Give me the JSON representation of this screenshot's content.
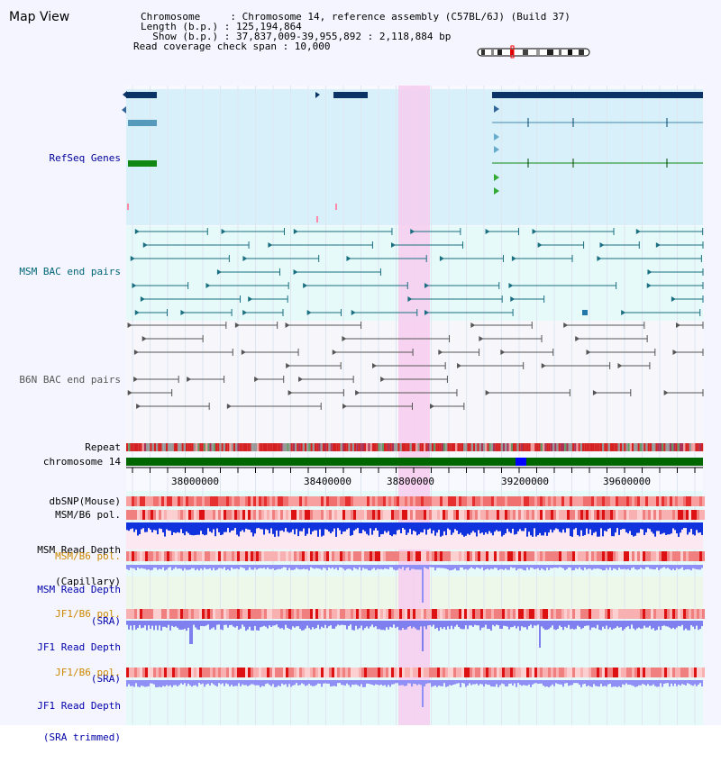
{
  "title": "Map View",
  "header": {
    "chromosome_line": "Chromosome     : Chromosome 14, reference assembly (C57BL/6J) (Build 37)",
    "length_line": "Length (b.p.) : 125,194,864",
    "show_line": "  Show (b.p.) : 37,837,009-39,955,892 : 2,118,884 bp",
    "read_coverage_line": "Read coverage check span : 10,000"
  },
  "tracks": {
    "refseq": "RefSeq Genes",
    "msm_bac": "MSM BAC end pairs",
    "b6n_bac": "B6N BAC end pairs",
    "repeat": "Repeat",
    "chromosome": "chromosome 14",
    "dbsnp": "dbSNP(Mouse)",
    "msm_b6_pol": "MSM/B6 pol.",
    "msm_depth_cap_1": "MSM Read Depth",
    "msm_depth_cap_2": "(Capillary)",
    "msm_b6_pol_2": "MSM/B6 pol.",
    "msm_depth_sra_1": "MSM Read Depth",
    "msm_depth_sra_2": "(SRA)",
    "jf1_b6_pol": "JF1/B6 pol.",
    "jf1_depth_sra_1": "JF1 Read Depth",
    "jf1_depth_sra_2": "(SRA)",
    "jf1_b6_pol_2": "JF1/B6 pol.",
    "jf1_depth_trim_1": "JF1 Read Depth",
    "jf1_depth_trim_2": "(SRA trimmed)"
  },
  "axis": {
    "ticks": [
      "38000000",
      "38400000",
      "38800000",
      "39200000",
      "39600000"
    ]
  },
  "colors": {
    "refseq_label": "#000099",
    "msm_bac_label": "#006677",
    "b6n_bac_label": "#555555",
    "msm_pol_label": "#cc8800",
    "depth_label": "#0000aa",
    "highlight": "#f5c8ee"
  }
}
